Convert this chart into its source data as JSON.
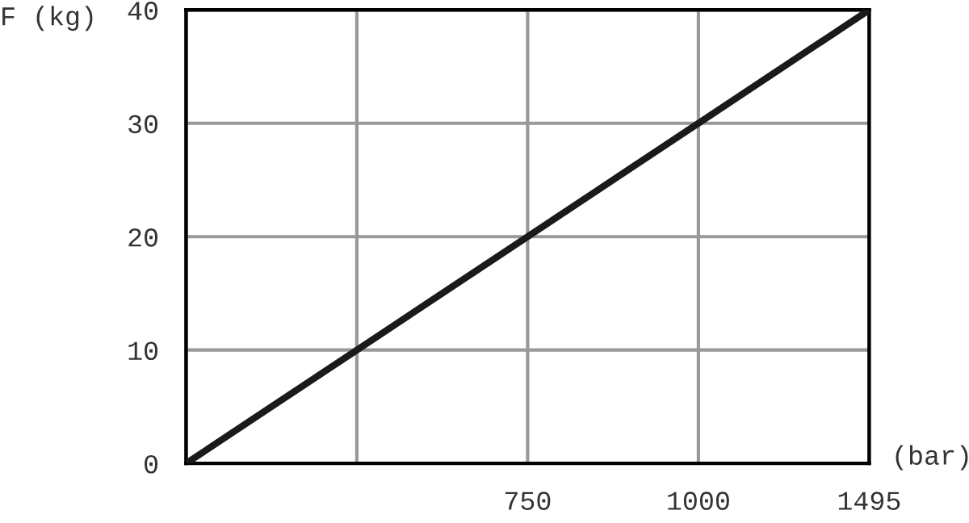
{
  "chart_data": {
    "type": "line",
    "ylabel": "F (kg)",
    "xlabel": "(bar)",
    "categories": [
      null,
      null,
      "750",
      "1000",
      "1495"
    ],
    "series": [
      {
        "color": "#1a1a1a",
        "values": [
          0,
          10,
          20,
          30,
          40
        ]
      }
    ],
    "ylim": [
      0,
      40
    ],
    "yticks": [
      0,
      10,
      20,
      30,
      40
    ],
    "grid": true,
    "marker": "none",
    "line_style": "solid"
  }
}
